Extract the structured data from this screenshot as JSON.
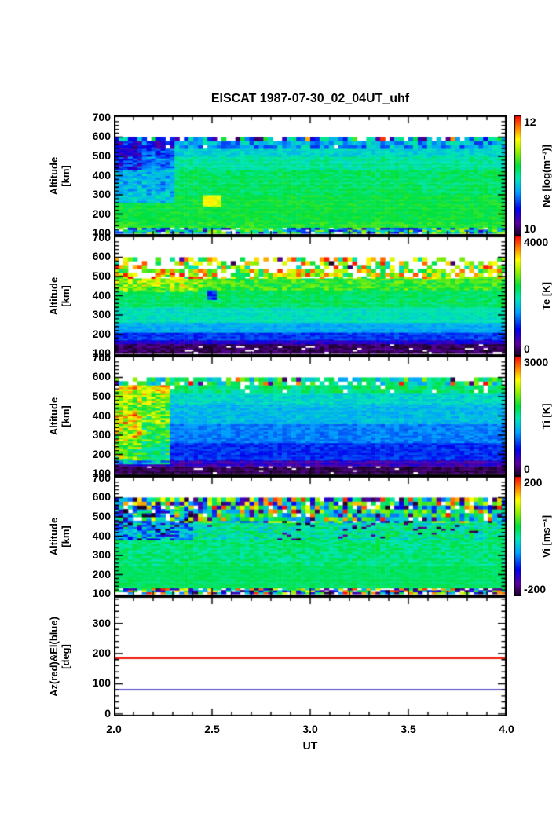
{
  "title": "EISCAT 1987-07-30_02_04UT_uhf",
  "chart_data": {
    "type": "heatmap",
    "title": "EISCAT 1987-07-30_02_04UT_uhf",
    "xlabel": "UT",
    "x_range": [
      2.0,
      4.0
    ],
    "x_major_ticks": [
      2.0,
      2.5,
      3.0,
      3.5,
      4.0
    ],
    "x_tick_labels": [
      "2.0",
      "2.5",
      "3.0",
      "3.5",
      "4.0"
    ],
    "x_minor_step": 0.1,
    "colormap": [
      [
        0.0,
        [
          25,
          0,
          35
        ]
      ],
      [
        0.1,
        [
          90,
          0,
          160
        ]
      ],
      [
        0.22,
        [
          0,
          0,
          235
        ]
      ],
      [
        0.36,
        [
          0,
          160,
          255
        ]
      ],
      [
        0.48,
        [
          0,
          230,
          180
        ]
      ],
      [
        0.58,
        [
          0,
          225,
          60
        ]
      ],
      [
        0.7,
        [
          150,
          240,
          0
        ]
      ],
      [
        0.8,
        [
          255,
          255,
          0
        ]
      ],
      [
        0.9,
        [
          255,
          130,
          0
        ]
      ],
      [
        1.0,
        [
          255,
          0,
          0
        ]
      ]
    ],
    "panels": [
      {
        "name": "electron-density",
        "ylabel": "Altitude\n[km]",
        "y_range": [
          88,
          712
        ],
        "y_ticks": [
          100,
          200,
          300,
          400,
          500,
          600,
          700
        ],
        "y_minor_step": 20,
        "colorbar": {
          "title": "Ne [log(m⁻³)]",
          "max_label": "12",
          "min_label": "10",
          "range": [
            10,
            12
          ]
        },
        "heatmap": {
          "alt_span": [
            100,
            600
          ],
          "bands": [
            {
              "alt": [
                100,
                130
              ],
              "t": 0.45,
              "noise": 0.3,
              "white": 0.1
            },
            {
              "alt": [
                130,
                160
              ],
              "t": 0.6,
              "noise": 0.05
            },
            {
              "alt": [
                160,
                300
              ],
              "t": 0.58,
              "noise": 0.04
            },
            {
              "alt": [
                300,
                430
              ],
              "t": 0.55,
              "noise": 0.05
            },
            {
              "alt": [
                430,
                500
              ],
              "t": 0.5,
              "noise": 0.05
            },
            {
              "alt": [
                500,
                545
              ],
              "t": 0.44,
              "noise": 0.05
            },
            {
              "alt": [
                545,
                580
              ],
              "t": 0.38,
              "noise": 0.12,
              "white": 0.06,
              "coarse": true
            },
            {
              "alt": [
                580,
                600
              ],
              "rand": [
                0.05,
                0.65
              ],
              "white": 0.15,
              "coarse": true,
              "hot": 0.03
            }
          ],
          "features": [
            {
              "ut": [
                2.0,
                2.32
              ],
              "alt": [
                260,
                580
              ],
              "dt": -0.16,
              "noise": 0.06
            },
            {
              "ut": [
                2.0,
                2.15
              ],
              "alt": [
                430,
                575
              ],
              "dt": -0.1,
              "noise": 0.05
            },
            {
              "ut": [
                2.46,
                2.54
              ],
              "alt": [
                245,
                295
              ],
              "dt": 0.2,
              "noise": 0.0
            }
          ]
        }
      },
      {
        "name": "electron-temperature",
        "ylabel": "Altitude\n[km]",
        "y_range": [
          88,
          712
        ],
        "y_ticks": [
          100,
          200,
          300,
          400,
          500,
          600,
          700
        ],
        "y_minor_step": 20,
        "colorbar": {
          "title": "Te [K]",
          "max_label": "4000",
          "min_label": "0",
          "range": [
            0,
            4000
          ]
        },
        "heatmap": {
          "alt_span": [
            100,
            600
          ],
          "bands": [
            {
              "alt": [
                100,
                150
              ],
              "t": 0.05,
              "noise": 0.05,
              "white": 0.04
            },
            {
              "alt": [
                150,
                175
              ],
              "t": 0.18,
              "noise": 0.05
            },
            {
              "alt": [
                175,
                215
              ],
              "t": 0.27,
              "noise": 0.04
            },
            {
              "alt": [
                215,
                260
              ],
              "t": 0.38,
              "noise": 0.04
            },
            {
              "alt": [
                260,
                340
              ],
              "t": 0.47,
              "noise": 0.04
            },
            {
              "alt": [
                340,
                430
              ],
              "t": 0.55,
              "noise": 0.05
            },
            {
              "alt": [
                430,
                490
              ],
              "t": 0.62,
              "noise": 0.08
            },
            {
              "alt": [
                490,
                545
              ],
              "rand": [
                0.5,
                0.95
              ],
              "white": 0.28,
              "coarse": true,
              "hot": 0.05
            },
            {
              "alt": [
                545,
                600
              ],
              "rand": [
                0.45,
                1.0
              ],
              "white": 0.5,
              "coarse": true,
              "cold": 0.04
            }
          ],
          "features": [
            {
              "ut": [
                2.0,
                2.45
              ],
              "alt": [
                420,
                520
              ],
              "dt": 0.08,
              "noise": 0.1
            },
            {
              "ut": [
                2.47,
                2.53
              ],
              "alt": [
                385,
                430
              ],
              "dt": -0.3,
              "noise": 0.0
            }
          ]
        }
      },
      {
        "name": "ion-temperature",
        "ylabel": "Altitude\n[km]",
        "y_range": [
          88,
          712
        ],
        "y_ticks": [
          100,
          200,
          300,
          400,
          500,
          600,
          700
        ],
        "y_minor_step": 20,
        "colorbar": {
          "title": "Ti [K]",
          "max_label": "3000",
          "min_label": "0",
          "range": [
            0,
            3000
          ]
        },
        "heatmap": {
          "alt_span": [
            100,
            600
          ],
          "bands": [
            {
              "alt": [
                100,
                140
              ],
              "t": 0.04,
              "noise": 0.04,
              "white": 0.05
            },
            {
              "alt": [
                140,
                170
              ],
              "t": 0.14,
              "noise": 0.06
            },
            {
              "alt": [
                170,
                260
              ],
              "t": 0.26,
              "noise": 0.04
            },
            {
              "alt": [
                260,
                360
              ],
              "t": 0.33,
              "noise": 0.04
            },
            {
              "alt": [
                360,
                460
              ],
              "t": 0.4,
              "noise": 0.05
            },
            {
              "alt": [
                460,
                520
              ],
              "t": 0.45,
              "noise": 0.05
            },
            {
              "alt": [
                520,
                555
              ],
              "t": 0.52,
              "noise": 0.08,
              "white": 0.08,
              "coarse": true
            },
            {
              "alt": [
                555,
                600
              ],
              "rand": [
                0.35,
                0.7
              ],
              "white": 0.22,
              "coarse": true,
              "hot": 0.06,
              "cold": 0.05
            }
          ],
          "features": [
            {
              "ut": [
                2.0,
                2.28
              ],
              "alt": [
                150,
                555
              ],
              "dt": 0.26,
              "noise": 0.13
            },
            {
              "ut": [
                2.0,
                2.14
              ],
              "alt": [
                170,
                430
              ],
              "dt": 0.14,
              "noise": 0.12
            }
          ]
        }
      },
      {
        "name": "ion-velocity",
        "ylabel": "Altitude\n[km]",
        "y_range": [
          88,
          712
        ],
        "y_ticks": [
          100,
          200,
          300,
          400,
          500,
          600,
          700
        ],
        "y_minor_step": 20,
        "colorbar": {
          "title": "Vi [ms⁻¹]",
          "max_label": "200",
          "min_label": "-200",
          "range": [
            -200,
            200
          ]
        },
        "heatmap": {
          "alt_span": [
            100,
            600
          ],
          "bands": [
            {
              "alt": [
                100,
                130
              ],
              "rand": [
                0.0,
                1.0
              ],
              "white": 0.18
            },
            {
              "alt": [
                130,
                250
              ],
              "t": 0.55,
              "noise": 0.03
            },
            {
              "alt": [
                250,
                380
              ],
              "t": 0.53,
              "noise": 0.06
            },
            {
              "alt": [
                380,
                470
              ],
              "t": 0.5,
              "noise": 0.1,
              "cold": 0.05
            },
            {
              "alt": [
                470,
                530
              ],
              "rand": [
                0.25,
                0.75
              ],
              "white": 0.05,
              "coarse": true,
              "cold": 0.12,
              "hot": 0.08
            },
            {
              "alt": [
                530,
                600
              ],
              "rand": [
                0.0,
                1.0
              ],
              "white": 0.1,
              "coarse": true
            }
          ],
          "features": [
            {
              "ut": [
                2.0,
                2.4
              ],
              "alt": [
                380,
                560
              ],
              "dt": -0.15,
              "noise": 0.15
            }
          ]
        }
      },
      {
        "name": "azimuth-elevation",
        "ylabel": "Az(red)&El(blue)\n[deg]",
        "y_range": [
          -8,
          390
        ],
        "y_ticks": [
          0,
          100,
          200,
          300
        ],
        "y_minor_step": 20,
        "lines": [
          {
            "name": "azimuth",
            "label": "Az(red)",
            "color": "#ee2012",
            "value": 185
          },
          {
            "name": "elevation",
            "label": "El(blue)",
            "color": "#3b2fc0",
            "value": 80
          }
        ]
      }
    ]
  }
}
